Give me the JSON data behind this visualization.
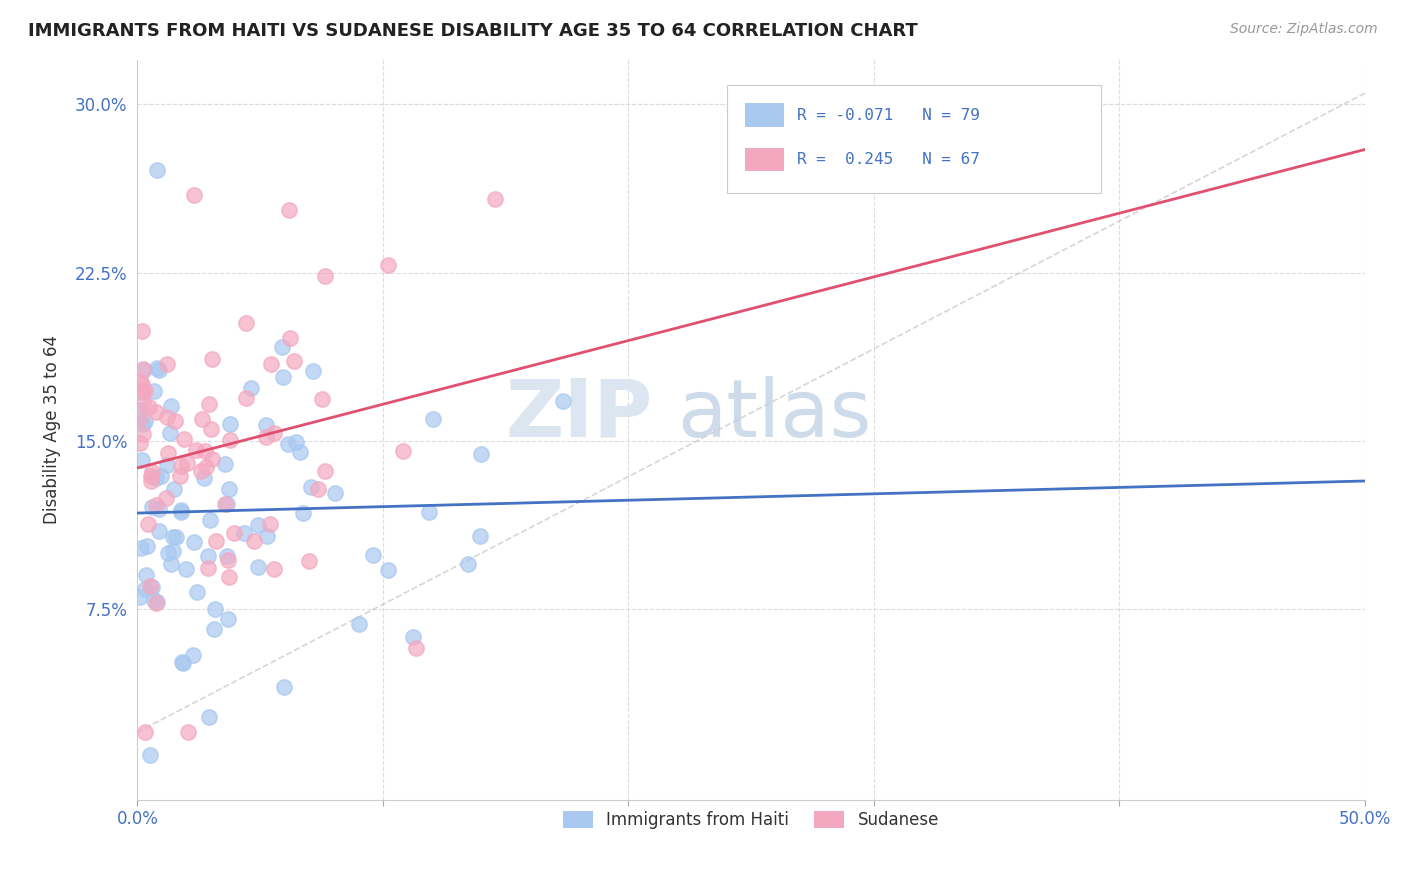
{
  "title": "IMMIGRANTS FROM HAITI VS SUDANESE DISABILITY AGE 35 TO 64 CORRELATION CHART",
  "source": "Source: ZipAtlas.com",
  "ylabel": "Disability Age 35 to 64",
  "xlim": [
    0.0,
    0.5
  ],
  "ylim": [
    -0.01,
    0.32
  ],
  "x_ticks": [
    0.0,
    0.1,
    0.2,
    0.3,
    0.4,
    0.5
  ],
  "x_tick_labels": [
    "0.0%",
    "",
    "",
    "",
    "",
    "50.0%"
  ],
  "y_ticks": [
    0.075,
    0.15,
    0.225,
    0.3
  ],
  "y_tick_labels": [
    "7.5%",
    "15.0%",
    "22.5%",
    "30.0%"
  ],
  "haiti_color": "#A8C8F0",
  "sudan_color": "#F4A8C0",
  "haiti_line_color": "#4472C4",
  "sudan_line_color": "#E05070",
  "trend_line_color": "#CCCCCC",
  "legend_r_haiti": "R = -0.071",
  "legend_n_haiti": "N = 79",
  "legend_r_sudan": "R =  0.245",
  "legend_n_sudan": "N = 67",
  "haiti_r": -0.071,
  "sudan_r": 0.245,
  "haiti_n": 79,
  "sudan_n": 67,
  "watermark_zip": "ZIP",
  "watermark_atlas": "atlas"
}
